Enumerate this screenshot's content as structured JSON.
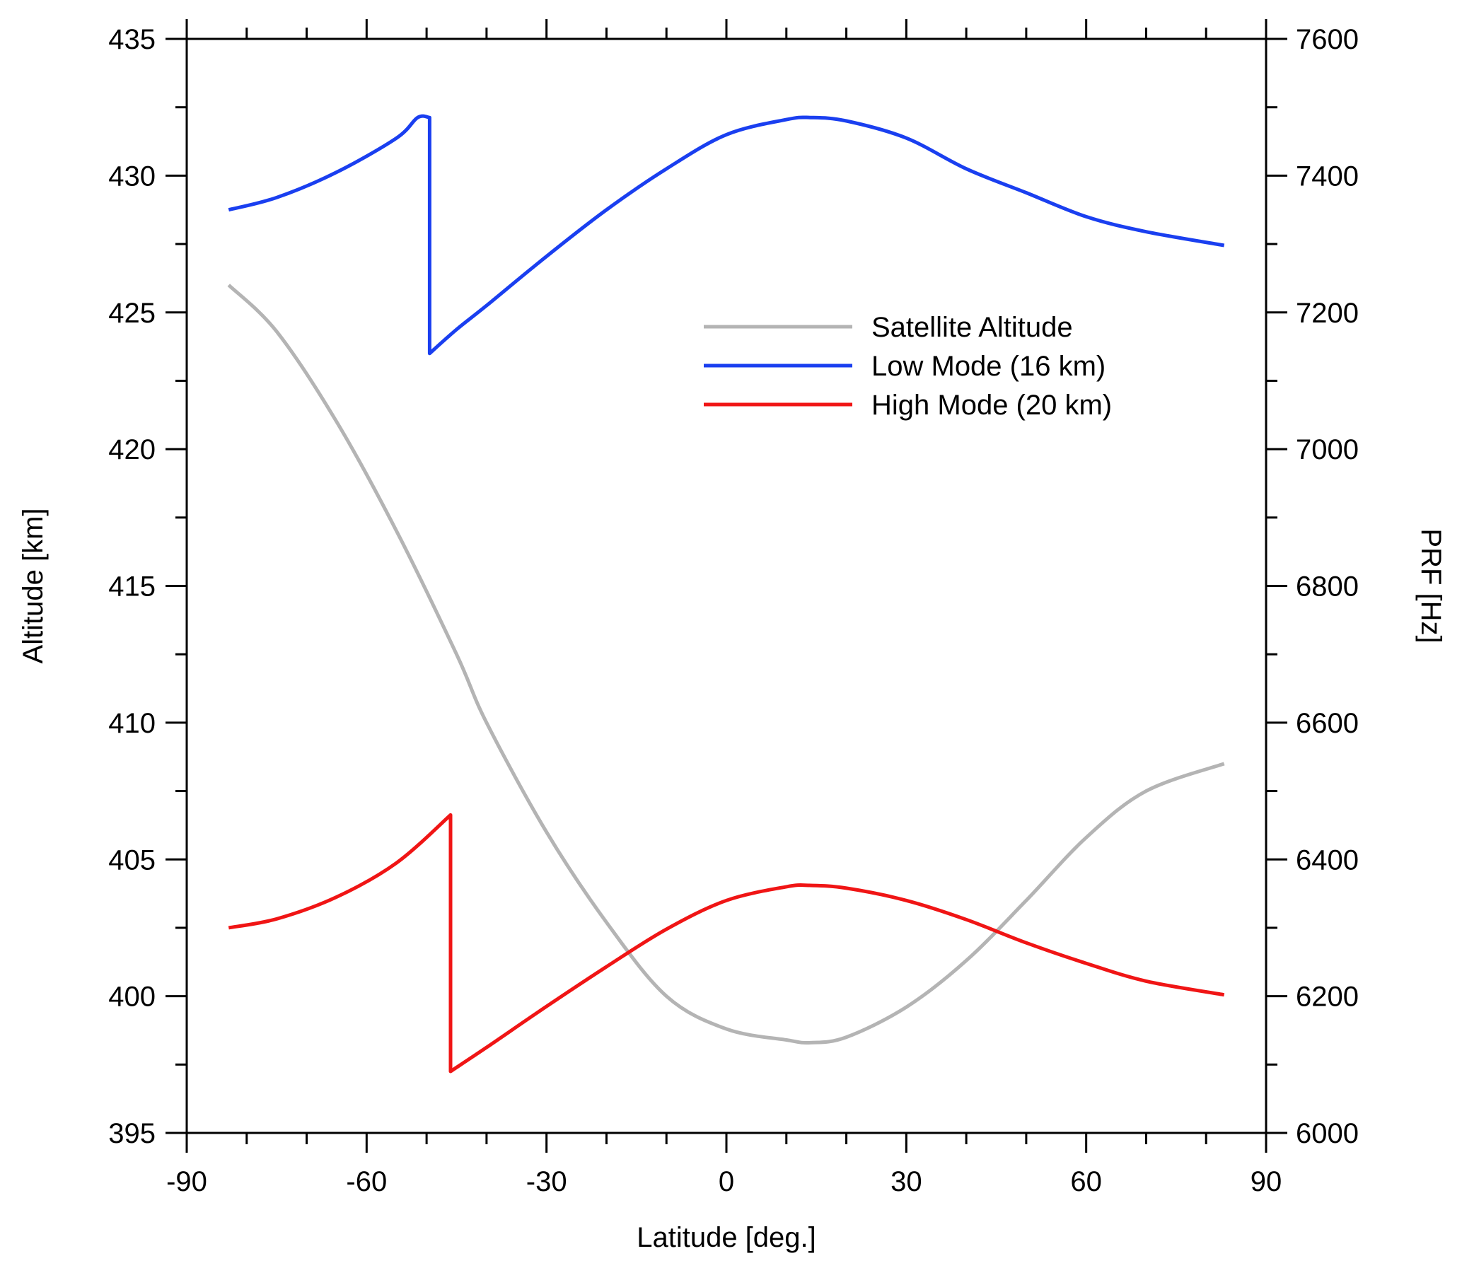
{
  "chart_data": {
    "type": "line",
    "xlabel": "Latitude [deg.]",
    "ylabel": "Altitude [km]",
    "y2label": "PRF [Hz]",
    "xlim": [
      -90,
      90
    ],
    "ylim": [
      395,
      435
    ],
    "y2lim": [
      6000,
      7600
    ],
    "xticks": [
      -90,
      -60,
      -30,
      0,
      30,
      60,
      90
    ],
    "yticks": [
      395,
      400,
      405,
      410,
      415,
      420,
      425,
      430,
      435
    ],
    "y2ticks": [
      6000,
      6200,
      6400,
      6600,
      6800,
      7000,
      7200,
      7400,
      7600
    ],
    "grid": false,
    "legend_position": "upper-right",
    "series": [
      {
        "name": "Satellite Altitude",
        "axis": "left",
        "color": "#b4b4b4",
        "x": [
          -83,
          -75,
          -65,
          -55,
          -45,
          -40,
          -30,
          -20,
          -10,
          0,
          10,
          14,
          20,
          30,
          40,
          50,
          60,
          70,
          83
        ],
        "y": [
          426.0,
          424.3,
          421.0,
          417.0,
          412.5,
          410.0,
          406.0,
          402.7,
          400.0,
          398.8,
          398.4,
          398.3,
          398.5,
          399.6,
          401.3,
          403.5,
          405.8,
          407.5,
          408.5
        ]
      },
      {
        "name": "Low Mode (16 km)",
        "axis": "right",
        "color": "#1a3ff0",
        "x": [
          -83,
          -75,
          -65,
          -55,
          -51.5,
          -49.5,
          -49.5,
          -45,
          -40,
          -30,
          -20,
          -10,
          0,
          10,
          14,
          20,
          30,
          40,
          50,
          60,
          70,
          83
        ],
        "y": [
          7350,
          7368,
          7405,
          7455,
          7485,
          7485,
          7140,
          7175,
          7210,
          7282,
          7350,
          7410,
          7460,
          7482,
          7485,
          7480,
          7455,
          7410,
          7375,
          7340,
          7318,
          7298
        ]
      },
      {
        "name": "High Mode (20 km)",
        "axis": "right",
        "color": "#f01515",
        "x": [
          -83,
          -75,
          -65,
          -55,
          -46,
          -46,
          -40,
          -30,
          -20,
          -10,
          0,
          10,
          14,
          20,
          30,
          40,
          50,
          60,
          70,
          83
        ],
        "y": [
          6300,
          6313,
          6345,
          6395,
          6465,
          6090,
          6125,
          6185,
          6243,
          6298,
          6340,
          6360,
          6362,
          6358,
          6340,
          6312,
          6278,
          6248,
          6222,
          6202
        ]
      }
    ]
  }
}
